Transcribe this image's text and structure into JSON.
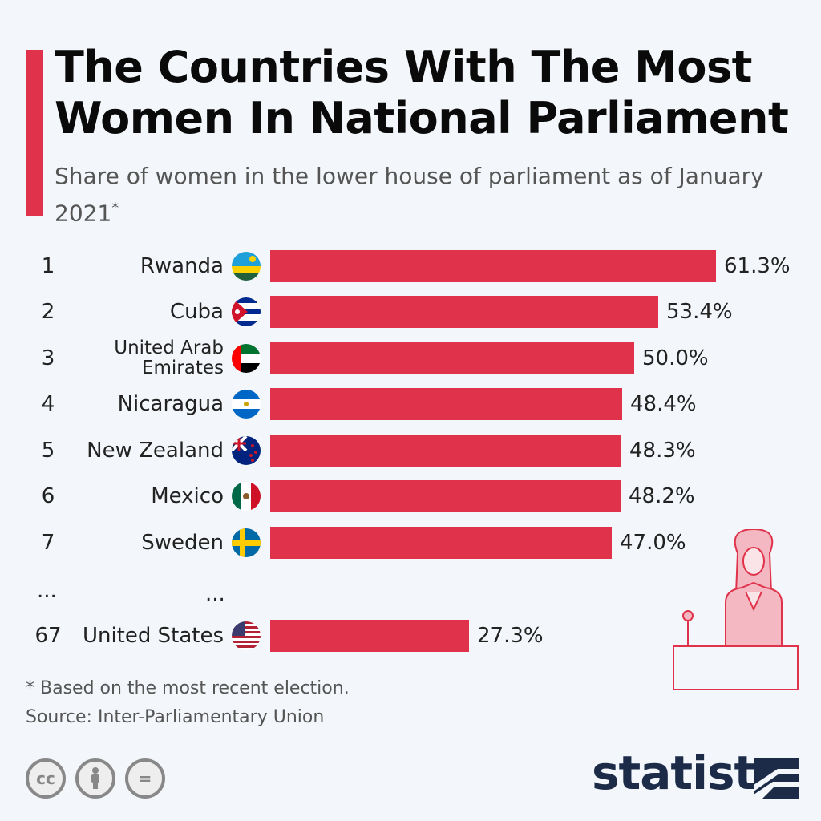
{
  "header": {
    "title": "The Countries With The Most Women In National Parliament",
    "subtitle": "Share of women in the lower house of parliament as of January 2021",
    "subtitle_mark": "*"
  },
  "chart_data": {
    "type": "bar",
    "orientation": "horizontal",
    "title": "The Countries With The Most Women In National Parliament",
    "subtitle": "Share of women in the lower house of parliament as of January 2021*",
    "categories": [
      "Rwanda",
      "Cuba",
      "United Arab Emirates",
      "Nicaragua",
      "New Zealand",
      "Mexico",
      "Sweden",
      "United States"
    ],
    "ranks": [
      "1",
      "2",
      "3",
      "4",
      "5",
      "6",
      "7",
      "67"
    ],
    "values": [
      61.3,
      53.4,
      50.0,
      48.4,
      48.3,
      48.2,
      47.0,
      27.3
    ],
    "value_labels": [
      "61.3%",
      "53.4%",
      "50.0%",
      "48.4%",
      "48.3%",
      "48.2%",
      "47.0%",
      "27.3%"
    ],
    "gap_marks": [
      "...",
      "..."
    ],
    "bar_color": "#e0324a",
    "xlim": [
      0,
      61.3
    ]
  },
  "flags": [
    "rwanda-flag",
    "cuba-flag",
    "uae-flag",
    "nicaragua-flag",
    "new-zealand-flag",
    "mexico-flag",
    "sweden-flag",
    "usa-flag"
  ],
  "footer": {
    "footnote": "* Based on the most recent election.",
    "source": "Source: Inter-Parliamentary Union",
    "brand": "statista",
    "license_icons": [
      "cc",
      "by",
      "nd"
    ],
    "license_labels": [
      "cc",
      "",
      "="
    ]
  },
  "colors": {
    "accent": "#e0324a",
    "background": "#f3f6fa",
    "brand": "#1c2b47"
  }
}
